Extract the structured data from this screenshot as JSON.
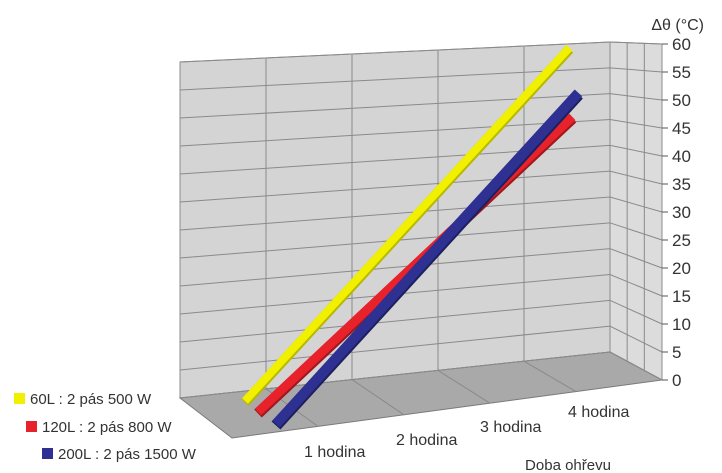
{
  "chart_data": {
    "type": "line",
    "subtype": "3d-line",
    "ylabel": "Δθ (°C)",
    "xlabel": "Doba ohřevu",
    "ylim": [
      0,
      60
    ],
    "yticks": [
      0,
      5,
      10,
      15,
      20,
      25,
      30,
      35,
      40,
      45,
      50,
      55,
      60
    ],
    "categories": [
      "1 hodina",
      "2 hodina",
      "3 hodina",
      "4 hodina"
    ],
    "grid": true,
    "legend_position": "bottom-left",
    "series": [
      {
        "name": "60L : 2 pás 500 W",
        "color": "#f0f000",
        "x": [
          0,
          4
        ],
        "y": [
          0,
          60
        ]
      },
      {
        "name": "120L : 2 pás 800 W",
        "color": "#e8222a",
        "x": [
          0,
          4
        ],
        "y": [
          0,
          47
        ]
      },
      {
        "name": "200L : 2 pás 1500 W",
        "color": "#2e3192",
        "x": [
          0,
          4
        ],
        "y": [
          0,
          52
        ]
      }
    ]
  }
}
